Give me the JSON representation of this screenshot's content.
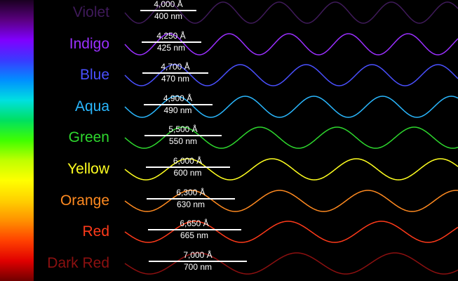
{
  "spectrum": {
    "stops": [
      "#1a0020",
      "#5a0080",
      "#8000ff",
      "#3a3aff",
      "#0090ff",
      "#00e0e0",
      "#00e060",
      "#40ff00",
      "#c0ff00",
      "#ffff00",
      "#ffd000",
      "#ff9000",
      "#ff4000",
      "#e00000",
      "#700000"
    ]
  },
  "colors": [
    {
      "name": "Violet",
      "angstrom": "4,000 Å",
      "nm": "400 nm",
      "wavelength_nm": 400,
      "color": "#3f1a5a"
    },
    {
      "name": "Indigo",
      "angstrom": "4,250 Å",
      "nm": "425 nm",
      "wavelength_nm": 425,
      "color": "#9a30ff"
    },
    {
      "name": "Blue",
      "angstrom": "4,700 Å",
      "nm": "470 nm",
      "wavelength_nm": 470,
      "color": "#4a50ff"
    },
    {
      "name": "Aqua",
      "angstrom": "4,900 Å",
      "nm": "490 nm",
      "wavelength_nm": 490,
      "color": "#2ab8ff"
    },
    {
      "name": "Green",
      "angstrom": "5,500 Å",
      "nm": "550 nm",
      "wavelength_nm": 550,
      "color": "#2ed82e"
    },
    {
      "name": "Yellow",
      "angstrom": "6,000 Å",
      "nm": "600 nm",
      "wavelength_nm": 600,
      "color": "#ffff20"
    },
    {
      "name": "Orange",
      "angstrom": "6,300 Å",
      "nm": "630 nm",
      "wavelength_nm": 630,
      "color": "#ff8a20"
    },
    {
      "name": "Red",
      "angstrom": "6,650 Å",
      "nm": "665 nm",
      "wavelength_nm": 665,
      "color": "#ff3a1a"
    },
    {
      "name": "Dark Red",
      "angstrom": "7,000 Å",
      "nm": "700 nm",
      "wavelength_nm": 700,
      "color": "#8c1010"
    }
  ]
}
